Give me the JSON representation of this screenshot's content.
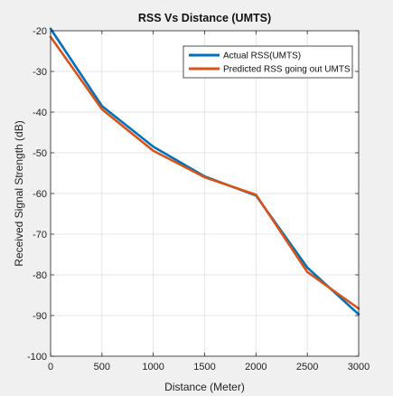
{
  "chart_data": {
    "type": "line",
    "title": "RSS Vs Distance (UMTS)",
    "xlabel": "Distance (Meter)",
    "ylabel": "Received Signal Strength (dB)",
    "xlim": [
      0,
      3000
    ],
    "ylim": [
      -100,
      -20
    ],
    "xticks": [
      0,
      500,
      1000,
      1500,
      2000,
      2500,
      3000
    ],
    "yticks": [
      -20,
      -30,
      -40,
      -50,
      -60,
      -70,
      -80,
      -90,
      -100
    ],
    "grid": true,
    "legend_position": "top-right",
    "series": [
      {
        "name": "Actual RSS(UMTS)",
        "color": "#0072bd",
        "x": [
          0,
          500,
          1000,
          1500,
          2000,
          2500,
          3000
        ],
        "y": [
          -19.5,
          -38.5,
          -48.5,
          -55.8,
          -60.5,
          -78.2,
          -89.7
        ]
      },
      {
        "name": "Predicted  RSS going out UMTS",
        "color": "#d95319",
        "x": [
          0,
          500,
          1000,
          1500,
          2000,
          2500,
          3000
        ],
        "y": [
          -21.5,
          -39.3,
          -49.5,
          -56.0,
          -60.3,
          -79.3,
          -88.3
        ]
      }
    ]
  }
}
